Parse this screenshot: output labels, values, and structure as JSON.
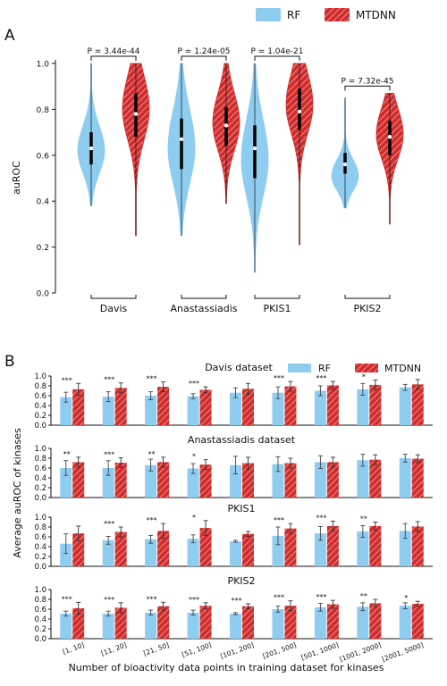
{
  "colors": {
    "rf": "#8ecdf0",
    "mtdnn": "#d12c2c",
    "axis": "#111111"
  },
  "legend": {
    "rf": "RF",
    "mtdnn": "MTDNN"
  },
  "chart_data": [
    {
      "panel": "A",
      "type": "violin",
      "ylabel": "auROC",
      "ylim": [
        0.0,
        1.0
      ],
      "yticks": [
        "0.0",
        "0.2",
        "0.4",
        "0.6",
        "0.8",
        "1.0"
      ],
      "categories": [
        "Davis",
        "Anastassiadis",
        "PKIS1",
        "PKIS2"
      ],
      "pvalues": [
        "P = 3.44e-44",
        "P = 1.24e-05",
        "P = 1.04e-21",
        "P = 7.32e-45"
      ],
      "series": [
        {
          "name": "RF",
          "median": [
            0.63,
            0.67,
            0.63,
            0.56
          ],
          "q1": [
            0.56,
            0.54,
            0.5,
            0.52
          ],
          "q3": [
            0.7,
            0.76,
            0.73,
            0.61
          ],
          "min": [
            0.38,
            0.25,
            0.09,
            0.37
          ],
          "max": [
            1.0,
            1.0,
            1.0,
            0.85
          ],
          "mode": [
            0.62,
            0.63,
            0.58,
            0.51
          ]
        },
        {
          "name": "MTDNN",
          "median": [
            0.78,
            0.73,
            0.79,
            0.68
          ],
          "q1": [
            0.68,
            0.64,
            0.71,
            0.6
          ],
          "q3": [
            0.87,
            0.81,
            0.89,
            0.75
          ],
          "min": [
            0.25,
            0.39,
            0.21,
            0.3
          ],
          "max": [
            1.0,
            1.0,
            1.0,
            0.87
          ],
          "mode": [
            0.8,
            0.74,
            0.82,
            0.69
          ]
        }
      ]
    },
    {
      "panel": "B",
      "type": "bar",
      "ylabel": "Average auROC of kinases",
      "xlabel": "Number of bioactivity data points in training dataset for kinases",
      "categories": [
        "[1, 10]",
        "[11, 20]",
        "[21, 50]",
        "[51, 100]",
        "[101, 200]",
        "[201, 500]",
        "[501, 1000]",
        "[1001, 2000]",
        "[2001, 5000]"
      ],
      "yticks": [
        "0.0",
        "0.2",
        "0.4",
        "0.6",
        "0.8",
        "1.0"
      ],
      "ylim": [
        0.0,
        1.0
      ],
      "subplots": [
        {
          "title": "Davis dataset",
          "rf": [
            0.57,
            0.58,
            0.6,
            0.59,
            0.66,
            0.66,
            0.7,
            0.73,
            0.77
          ],
          "rf_err": [
            0.1,
            0.1,
            0.08,
            0.05,
            0.1,
            0.12,
            0.1,
            0.12,
            0.06
          ],
          "mtdnn": [
            0.73,
            0.76,
            0.78,
            0.72,
            0.74,
            0.79,
            0.81,
            0.82,
            0.83
          ],
          "mtdnn_err": [
            0.12,
            0.1,
            0.1,
            0.06,
            0.11,
            0.1,
            0.08,
            0.1,
            0.1
          ],
          "sig": [
            "***",
            "***",
            "***",
            "***",
            "",
            "***",
            "***",
            "*",
            ""
          ]
        },
        {
          "title": "Anastassiadis dataset",
          "rf": [
            0.6,
            0.6,
            0.66,
            0.59,
            0.66,
            0.68,
            0.72,
            0.76,
            0.8
          ],
          "rf_err": [
            0.15,
            0.15,
            0.12,
            0.1,
            0.18,
            0.15,
            0.13,
            0.12,
            0.08
          ],
          "mtdnn": [
            0.72,
            0.71,
            0.72,
            0.67,
            0.7,
            0.7,
            0.72,
            0.77,
            0.79
          ],
          "mtdnn_err": [
            0.1,
            0.1,
            0.1,
            0.1,
            0.12,
            0.1,
            0.1,
            0.1,
            0.08
          ],
          "sig": [
            "**",
            "***",
            "**",
            "*",
            "",
            "",
            "",
            "",
            ""
          ]
        },
        {
          "title": "PKIS1",
          "rf": [
            0.46,
            0.53,
            0.55,
            0.56,
            0.51,
            0.62,
            0.67,
            0.71,
            0.72
          ],
          "rf_err": [
            0.2,
            0.08,
            0.08,
            0.08,
            0.02,
            0.18,
            0.14,
            0.12,
            0.15
          ],
          "mtdnn": [
            0.67,
            0.7,
            0.72,
            0.78,
            0.66,
            0.77,
            0.82,
            0.82,
            0.81
          ],
          "mtdnn_err": [
            0.15,
            0.1,
            0.15,
            0.15,
            0.05,
            0.1,
            0.1,
            0.08,
            0.1
          ],
          "sig": [
            "",
            "***",
            "***",
            "*",
            "",
            "***",
            "***",
            "**",
            ""
          ]
        },
        {
          "title": "PKIS2",
          "rf": [
            0.51,
            0.51,
            0.53,
            0.53,
            0.51,
            0.6,
            0.64,
            0.65,
            0.67
          ],
          "rf_err": [
            0.05,
            0.05,
            0.05,
            0.05,
            0.02,
            0.06,
            0.08,
            0.08,
            0.06
          ],
          "mtdnn": [
            0.62,
            0.63,
            0.66,
            0.67,
            0.66,
            0.67,
            0.7,
            0.72,
            0.71
          ],
          "mtdnn_err": [
            0.12,
            0.1,
            0.08,
            0.06,
            0.05,
            0.1,
            0.08,
            0.08,
            0.05
          ],
          "sig": [
            "***",
            "***",
            "***",
            "***",
            "***",
            "***",
            "***",
            "**",
            "*"
          ]
        }
      ],
      "legend_location": "top-right of first subplot"
    }
  ],
  "panel_labels": [
    "A",
    "B"
  ]
}
